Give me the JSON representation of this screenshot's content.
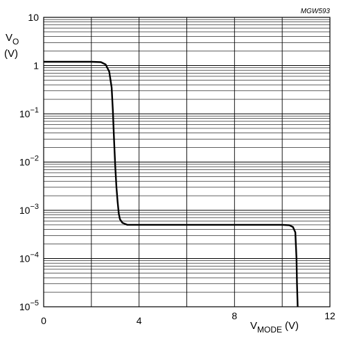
{
  "figure_ref": "MGW593",
  "chart_data": {
    "type": "line",
    "xscale": "linear",
    "yscale": "log",
    "xlim": [
      0,
      12
    ],
    "ylim": [
      1e-05,
      10
    ],
    "grid": true,
    "xticks": [
      0,
      4,
      8,
      12
    ],
    "x_tick_labels": [
      "0",
      "4",
      "8",
      "12"
    ],
    "yticks": [
      1e-05,
      0.0001,
      0.001,
      0.01,
      0.1,
      1,
      10
    ],
    "y_tick_labels": [
      {
        "base": "10",
        "exp": "−5"
      },
      {
        "base": "10",
        "exp": "−4"
      },
      {
        "base": "10",
        "exp": "−3"
      },
      {
        "base": "10",
        "exp": "−2"
      },
      {
        "base": "10",
        "exp": "−1"
      },
      {
        "base": "1",
        "exp": ""
      },
      {
        "base": "10",
        "exp": ""
      }
    ],
    "ylabel": {
      "main": "V",
      "sub": "O",
      "unit": "(V)"
    },
    "xlabel": {
      "main": "V",
      "sub": "MODE",
      "unit": "(V)"
    },
    "series": [
      {
        "x": [
          0,
          1.0,
          2.0,
          2.4,
          2.6,
          2.75,
          2.85,
          2.9,
          2.95,
          3.0,
          3.05,
          3.1,
          3.15,
          3.2,
          3.3,
          3.5,
          4.0,
          6.0,
          8.0,
          10.0,
          10.3,
          10.45,
          10.55,
          10.6,
          10.62,
          10.65
        ],
        "y": [
          1.2,
          1.2,
          1.2,
          1.18,
          1.05,
          0.75,
          0.35,
          0.12,
          0.03,
          0.008,
          0.003,
          0.0015,
          0.00085,
          0.00065,
          0.00055,
          0.0005,
          0.0005,
          0.0005,
          0.0005,
          0.0005,
          0.00049,
          0.00045,
          0.00035,
          0.0001,
          3e-05,
          1e-05
        ]
      }
    ]
  }
}
